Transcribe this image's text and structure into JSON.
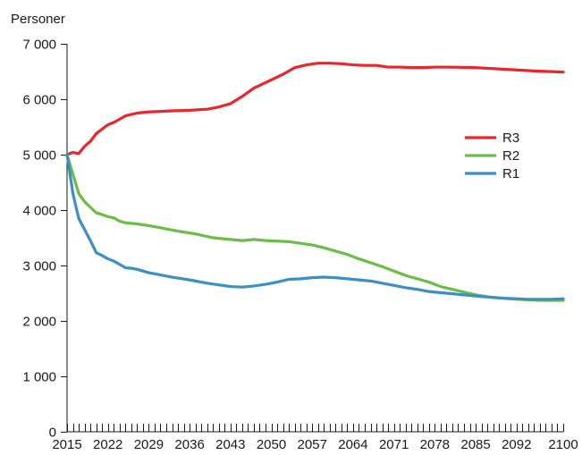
{
  "chart_data": {
    "type": "line",
    "ylabel": "Personer",
    "xlabel": "",
    "xlim": [
      2015,
      2100
    ],
    "ylim": [
      0,
      7000
    ],
    "y_ticks": [
      0,
      1000,
      2000,
      3000,
      4000,
      5000,
      6000,
      7000
    ],
    "y_tick_labels": [
      "0",
      "1 000",
      "2 000",
      "3 000",
      "4 000",
      "5 000",
      "6 000",
      "7 000"
    ],
    "x_tick_labels": [
      "2015",
      "2022",
      "2029",
      "2036",
      "2043",
      "2050",
      "2057",
      "2064",
      "2071",
      "2078",
      "2085",
      "2092",
      "2100"
    ],
    "x_tick_values": [
      2015,
      2022,
      2029,
      2036,
      2043,
      2050,
      2057,
      2064,
      2071,
      2078,
      2085,
      2092,
      2100
    ],
    "grid": false,
    "legend_position": "right",
    "series": [
      {
        "name": "R3",
        "color": "#e8262b",
        "x": [
          2015,
          2016,
          2017,
          2018,
          2019,
          2020,
          2021,
          2022,
          2023,
          2025,
          2027,
          2029,
          2031,
          2033,
          2036,
          2039,
          2041,
          2043,
          2045,
          2047,
          2049,
          2050,
          2052,
          2054,
          2056,
          2058,
          2060,
          2062,
          2064,
          2066,
          2068,
          2070,
          2072,
          2074,
          2076,
          2078,
          2080,
          2085,
          2090,
          2095,
          2100
        ],
        "values": [
          5000,
          5040,
          5020,
          5150,
          5240,
          5380,
          5460,
          5540,
          5580,
          5700,
          5750,
          5770,
          5780,
          5790,
          5800,
          5820,
          5860,
          5920,
          6050,
          6200,
          6300,
          6350,
          6450,
          6570,
          6620,
          6650,
          6650,
          6640,
          6620,
          6610,
          6610,
          6580,
          6580,
          6570,
          6570,
          6580,
          6580,
          6570,
          6540,
          6510,
          6490
        ]
      },
      {
        "name": "R2",
        "color": "#6abd45",
        "x": [
          2015,
          2016,
          2017,
          2018,
          2019,
          2020,
          2021,
          2022,
          2023,
          2024,
          2025,
          2027,
          2029,
          2031,
          2034,
          2037,
          2040,
          2043,
          2045,
          2047,
          2049,
          2051,
          2053,
          2055,
          2057,
          2059,
          2061,
          2063,
          2065,
          2067,
          2069,
          2071,
          2073,
          2075,
          2077,
          2079,
          2081,
          2083,
          2085,
          2088,
          2092,
          2096,
          2100
        ],
        "values": [
          5000,
          4650,
          4300,
          4150,
          4050,
          3950,
          3920,
          3880,
          3860,
          3800,
          3770,
          3750,
          3720,
          3680,
          3620,
          3570,
          3500,
          3470,
          3450,
          3470,
          3450,
          3440,
          3430,
          3400,
          3370,
          3320,
          3260,
          3200,
          3120,
          3050,
          2980,
          2900,
          2820,
          2760,
          2700,
          2620,
          2570,
          2520,
          2470,
          2420,
          2390,
          2370,
          2370
        ]
      },
      {
        "name": "R1",
        "color": "#3a8fc6",
        "x": [
          2015,
          2016,
          2017,
          2018,
          2019,
          2020,
          2021,
          2022,
          2023,
          2024,
          2025,
          2026,
          2027,
          2029,
          2031,
          2033,
          2036,
          2039,
          2041,
          2043,
          2045,
          2047,
          2049,
          2051,
          2053,
          2055,
          2057,
          2059,
          2061,
          2063,
          2065,
          2067,
          2069,
          2071,
          2073,
          2075,
          2077,
          2080,
          2083,
          2086,
          2090,
          2094,
          2098,
          2100
        ],
        "values": [
          5000,
          4300,
          3850,
          3650,
          3450,
          3230,
          3180,
          3120,
          3080,
          3020,
          2960,
          2950,
          2930,
          2870,
          2830,
          2790,
          2740,
          2680,
          2650,
          2620,
          2610,
          2630,
          2660,
          2700,
          2750,
          2760,
          2780,
          2790,
          2780,
          2760,
          2740,
          2720,
          2680,
          2640,
          2600,
          2570,
          2530,
          2500,
          2470,
          2440,
          2410,
          2390,
          2390,
          2400
        ]
      }
    ]
  }
}
